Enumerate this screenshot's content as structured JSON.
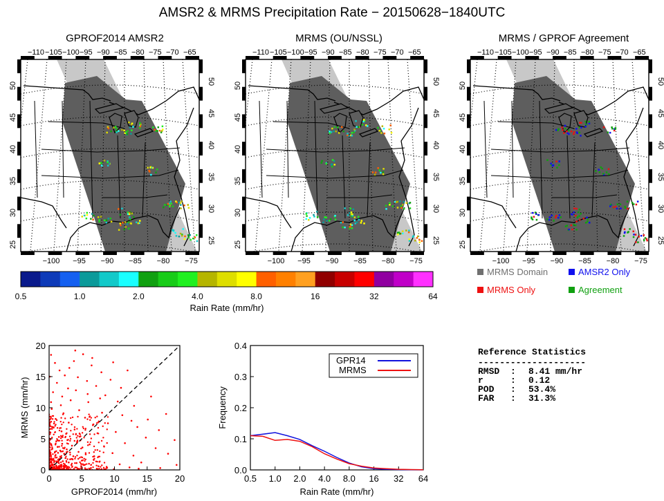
{
  "main_title": "AMSR2 & MRMS Precipitation Rate − 20150628−1840UTC",
  "panels": [
    {
      "title": "GPROF2014 AMSR2"
    },
    {
      "title": "MRMS (OU/NSSL)"
    },
    {
      "title": "MRMS / GPROF Agreement"
    }
  ],
  "map": {
    "top_ticks": [
      "−110",
      "−105",
      "−100",
      "−95",
      "−90",
      "−85",
      "−80",
      "−75",
      "−70",
      "−65"
    ],
    "bottom_ticks": [
      "−100",
      "−95",
      "−90",
      "−85",
      "−80",
      "−75"
    ],
    "lat_ticks": [
      "50",
      "45",
      "40",
      "35",
      "30",
      "25"
    ],
    "colors": {
      "land": "#ffffff",
      "domain_swath": "#5e5e5e",
      "outer_swath": "#c8c8c8",
      "coast": "#000000"
    }
  },
  "colorbar": {
    "colors": [
      "#0a1a8c",
      "#0d3ab8",
      "#1560f0",
      "#0b9a9a",
      "#12c9c9",
      "#1affff",
      "#10a010",
      "#18cc18",
      "#20f020",
      "#b5b500",
      "#dede00",
      "#ffff00",
      "#ff6000",
      "#ff8000",
      "#ffa020",
      "#900000",
      "#c80000",
      "#ff0000",
      "#9000a0",
      "#c000c8",
      "#ff30ff"
    ],
    "tick_labels": [
      "0.5",
      "1.0",
      "2.0",
      "4.0",
      "8.0",
      "16",
      "32",
      "64"
    ],
    "label": "Rain Rate (mm/hr)"
  },
  "agreement_legend": [
    {
      "label": "MRMS Domain",
      "color": "#707070",
      "text_color": "#707070"
    },
    {
      "label": "AMSR2 Only",
      "color": "#1010ee",
      "text_color": "#1010ee"
    },
    {
      "label": "MRMS Only",
      "color": "#ee1010",
      "text_color": "#ee1010"
    },
    {
      "label": "Agreement",
      "color": "#10a010",
      "text_color": "#10a010"
    }
  ],
  "chart_data": [
    {
      "type": "scatter",
      "xlabel": "GPROF2014 (mm/hr)",
      "ylabel": "MRMS (mm/hr)",
      "xlim": [
        0,
        20
      ],
      "ylim": [
        0,
        20
      ],
      "xticks": [
        0,
        5,
        10,
        15,
        20
      ],
      "yticks": [
        0,
        5,
        10,
        15,
        20
      ],
      "one_to_one_line": true,
      "point_color": "#ff0000",
      "points": [
        [
          0.3,
          18.5
        ],
        [
          0.9,
          17.2
        ],
        [
          1.6,
          16.0
        ],
        [
          2.4,
          15.2
        ],
        [
          3.8,
          17.5
        ],
        [
          5.2,
          18.6
        ],
        [
          6.5,
          16.8
        ],
        [
          1.2,
          14.0
        ],
        [
          2.9,
          13.1
        ],
        [
          0.6,
          12.5
        ],
        [
          4.1,
          12.8
        ],
        [
          5.8,
          14.3
        ],
        [
          7.2,
          13.5
        ],
        [
          8.6,
          12.0
        ],
        [
          9.4,
          14.5
        ],
        [
          3.3,
          11.2
        ],
        [
          1.8,
          10.4
        ],
        [
          6.0,
          10.9
        ],
        [
          7.8,
          11.5
        ],
        [
          10.5,
          11.0
        ],
        [
          0.4,
          9.8
        ],
        [
          2.2,
          9.1
        ],
        [
          4.6,
          9.6
        ],
        [
          5.5,
          8.4
        ],
        [
          8.1,
          9.2
        ],
        [
          11.2,
          8.8
        ],
        [
          12.6,
          7.9
        ],
        [
          1.0,
          8.2
        ],
        [
          3.0,
          7.6
        ],
        [
          6.7,
          7.2
        ],
        [
          9.0,
          7.5
        ],
        [
          13.5,
          6.9
        ],
        [
          0.7,
          6.8
        ],
        [
          1.9,
          6.2
        ],
        [
          2.6,
          5.8
        ],
        [
          3.9,
          6.5
        ],
        [
          4.8,
          5.4
        ],
        [
          7.4,
          5.9
        ],
        [
          10.2,
          6.1
        ],
        [
          14.8,
          5.2
        ],
        [
          0.2,
          5.0
        ],
        [
          1.1,
          4.6
        ],
        [
          1.5,
          5.3
        ],
        [
          2.0,
          4.2
        ],
        [
          2.8,
          4.8
        ],
        [
          3.5,
          3.9
        ],
        [
          4.3,
          4.4
        ],
        [
          5.1,
          3.6
        ],
        [
          6.2,
          4.1
        ],
        [
          8.4,
          3.8
        ],
        [
          11.6,
          4.3
        ],
        [
          16.3,
          3.5
        ],
        [
          0.5,
          3.4
        ],
        [
          0.9,
          2.9
        ],
        [
          1.3,
          3.7
        ],
        [
          1.7,
          3.1
        ],
        [
          2.3,
          2.6
        ],
        [
          2.7,
          3.3
        ],
        [
          3.2,
          2.8
        ],
        [
          3.7,
          2.2
        ],
        [
          4.5,
          2.9
        ],
        [
          5.6,
          2.5
        ],
        [
          6.9,
          2.2
        ],
        [
          9.7,
          2.7
        ],
        [
          12.9,
          2.3
        ],
        [
          18.2,
          2.6
        ],
        [
          0.3,
          2.2
        ],
        [
          0.6,
          1.8
        ],
        [
          1.0,
          2.4
        ],
        [
          1.4,
          1.6
        ],
        [
          1.8,
          2.0
        ],
        [
          2.1,
          1.4
        ],
        [
          2.5,
          1.9
        ],
        [
          3.0,
          1.2
        ],
        [
          3.6,
          1.7
        ],
        [
          4.2,
          1.1
        ],
        [
          5.0,
          1.5
        ],
        [
          6.1,
          1.0
        ],
        [
          7.7,
          1.3
        ],
        [
          10.8,
          0.9
        ],
        [
          14.1,
          1.2
        ],
        [
          19.5,
          0.8
        ],
        [
          0.2,
          1.2
        ],
        [
          0.5,
          0.9
        ],
        [
          0.8,
          1.4
        ],
        [
          1.1,
          0.7
        ],
        [
          1.5,
          1.1
        ],
        [
          1.9,
          0.6
        ],
        [
          2.4,
          0.9
        ],
        [
          2.9,
          0.5
        ],
        [
          3.4,
          0.8
        ],
        [
          4.0,
          0.4
        ],
        [
          4.9,
          0.6
        ],
        [
          6.4,
          0.3
        ],
        [
          8.8,
          0.5
        ],
        [
          12.3,
          0.4
        ],
        [
          17.0,
          0.3
        ],
        [
          0.4,
          0.4
        ],
        [
          0.7,
          0.2
        ],
        [
          1.2,
          0.3
        ],
        [
          1.6,
          0.5
        ],
        [
          2.2,
          0.2
        ],
        [
          2.7,
          0.3
        ],
        [
          3.3,
          0.1
        ],
        [
          4.4,
          0.2
        ],
        [
          5.8,
          0.1
        ],
        [
          7.3,
          0.2
        ],
        [
          9.9,
          0.1
        ],
        [
          13.7,
          0.2
        ],
        [
          0.1,
          0.7
        ],
        [
          0.1,
          3.0
        ],
        [
          0.2,
          6.0
        ],
        [
          0.3,
          10.9
        ],
        [
          0.1,
          15.0
        ],
        [
          2.0,
          11.8
        ],
        [
          3.1,
          16.4
        ],
        [
          4.4,
          14.9
        ],
        [
          5.9,
          12.2
        ],
        [
          8.0,
          15.7
        ],
        [
          11.0,
          13.2
        ],
        [
          13.0,
          10.3
        ],
        [
          15.1,
          8.1
        ],
        [
          16.8,
          6.4
        ],
        [
          17.9,
          9.0
        ],
        [
          19.2,
          4.8
        ],
        [
          6.6,
          18.0
        ],
        [
          4.0,
          19.2
        ],
        [
          9.8,
          17.3
        ],
        [
          12.0,
          16.0
        ],
        [
          15.6,
          11.8
        ]
      ]
    },
    {
      "type": "line",
      "xlabel": "Rain Rate (mm/hr)",
      "ylabel": "Frequency",
      "x_scale": "log2",
      "xlim": [
        0.5,
        64
      ],
      "ylim": [
        0,
        0.4
      ],
      "xticks": [
        "0.5",
        "1.0",
        "2.0",
        "4.0",
        "8.0",
        "16",
        "32",
        "64"
      ],
      "yticks": [
        "0.0",
        "0.1",
        "0.2",
        "0.3",
        "0.4"
      ],
      "legend_position": "top-right",
      "x": [
        0.5,
        0.71,
        1.0,
        1.41,
        2.0,
        2.83,
        4.0,
        5.66,
        8.0,
        11.3,
        16,
        22.6,
        32,
        45.3,
        64
      ],
      "series": [
        {
          "name": "GPR14",
          "color": "#1010dd",
          "values": [
            0.11,
            0.115,
            0.12,
            0.11,
            0.098,
            0.078,
            0.06,
            0.04,
            0.022,
            0.01,
            0.004,
            0.002,
            0.001,
            0.0005,
            0.0002
          ]
        },
        {
          "name": "MRMS",
          "color": "#ee1010",
          "values": [
            0.11,
            0.108,
            0.095,
            0.098,
            0.092,
            0.075,
            0.052,
            0.035,
            0.02,
            0.012,
            0.006,
            0.004,
            0.002,
            0.001,
            0.0005
          ]
        }
      ]
    }
  ],
  "stats": {
    "title": "Reference Statistics",
    "rule": "--------------------",
    "rows": [
      {
        "key": "RMSD",
        "sep": ":",
        "value": "8.41 mm/hr"
      },
      {
        "key": "r",
        "sep": ":",
        "value": "0.12"
      },
      {
        "key": "POD",
        "sep": ":",
        "value": "53.4%"
      },
      {
        "key": "FAR",
        "sep": ":",
        "value": "31.3%"
      }
    ]
  }
}
